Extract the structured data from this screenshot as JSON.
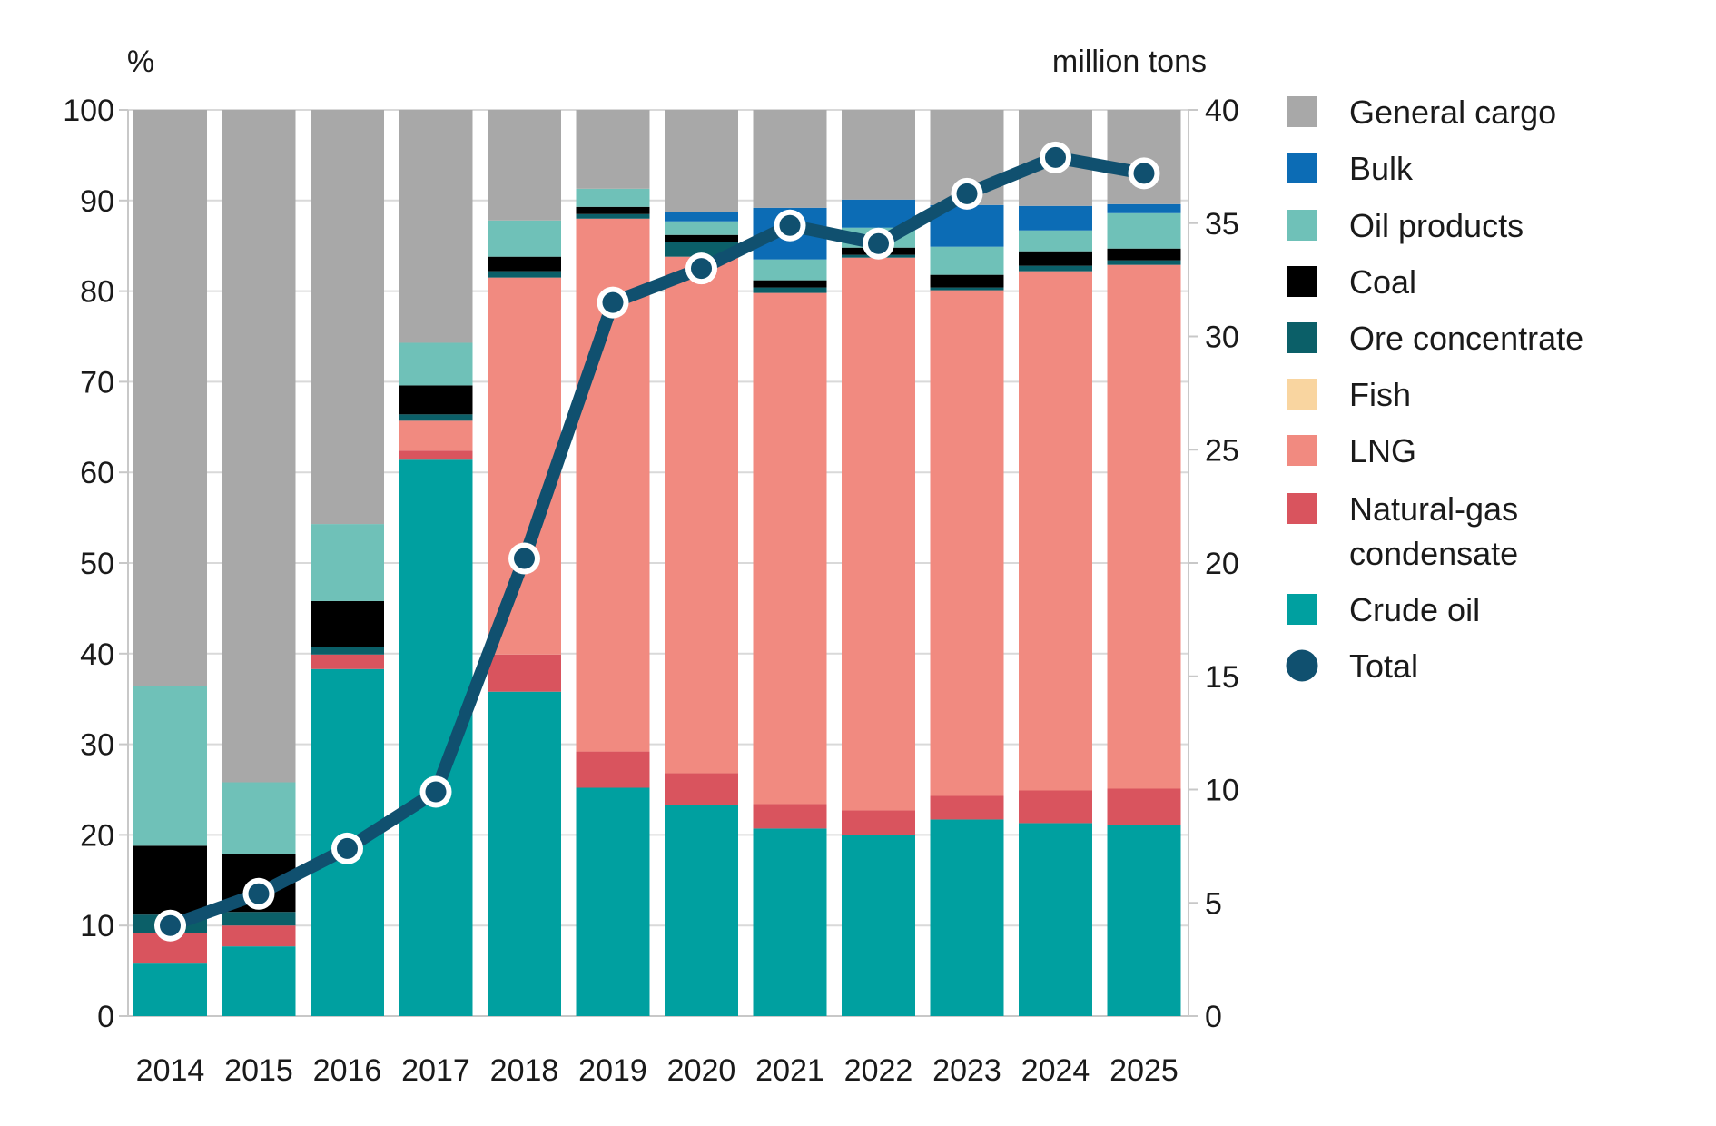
{
  "chart_data": {
    "type": "stacked-bar-line-combo",
    "title": "",
    "left_axis": {
      "label": "%",
      "min": 0,
      "max": 100,
      "step": 10,
      "ticks": [
        0,
        10,
        20,
        30,
        40,
        50,
        60,
        70,
        80,
        90,
        100
      ]
    },
    "right_axis": {
      "label": "million tons",
      "min": 0,
      "max": 40,
      "step": 5,
      "ticks": [
        0,
        5,
        10,
        15,
        20,
        25,
        30,
        35,
        40
      ]
    },
    "categories": [
      "2014",
      "2015",
      "2016",
      "2017",
      "2018",
      "2019",
      "2020",
      "2021",
      "2022",
      "2023",
      "2024",
      "2025"
    ],
    "stack_order": [
      "Crude oil",
      "Natural-gas condensate",
      "LNG",
      "Fish",
      "Ore concentrate",
      "Coal",
      "Oil products",
      "Bulk",
      "General cargo"
    ],
    "series": [
      {
        "name": "General cargo",
        "color": "#a8a8a8",
        "values": [
          63.6,
          74.2,
          45.7,
          25.7,
          12.2,
          8.7,
          11.3,
          10.8,
          9.9,
          10.5,
          10.6,
          10.4
        ]
      },
      {
        "name": "Bulk",
        "color": "#0c6cb5",
        "values": [
          0,
          0,
          0,
          0,
          0,
          0,
          1.0,
          5.7,
          3.1,
          4.6,
          2.7,
          1.0
        ]
      },
      {
        "name": "Oil products",
        "color": "#6fc1b8",
        "values": [
          17.6,
          7.9,
          8.5,
          4.7,
          4.0,
          2.0,
          1.5,
          2.3,
          2.2,
          3.1,
          2.3,
          3.9
        ]
      },
      {
        "name": "Coal",
        "color": "#000000",
        "values": [
          7.6,
          6.4,
          5.1,
          3.2,
          1.6,
          0.8,
          0.8,
          0.8,
          0.8,
          1.4,
          1.6,
          1.3
        ]
      },
      {
        "name": "Ore concentrate",
        "color": "#0b5f68",
        "values": [
          2.0,
          1.5,
          0.8,
          0.7,
          0.7,
          0.5,
          1.6,
          0.6,
          0.3,
          0.3,
          0.6,
          0.5
        ]
      },
      {
        "name": "Fish",
        "color": "#f9d5a0",
        "values": [
          0,
          0,
          0,
          0,
          0,
          0,
          0,
          0,
          0,
          0,
          0,
          0
        ]
      },
      {
        "name": "LNG",
        "color": "#f18a80",
        "values": [
          0,
          0,
          0,
          3.3,
          41.6,
          58.8,
          57.0,
          56.4,
          61.0,
          55.8,
          57.3,
          57.8
        ]
      },
      {
        "name": "Natural-gas condensate",
        "label_lines": [
          "Natural-gas",
          "condensate"
        ],
        "color": "#d9545e",
        "values": [
          3.4,
          2.3,
          1.6,
          1.0,
          4.1,
          4.0,
          3.5,
          2.7,
          2.7,
          2.6,
          3.6,
          4.0
        ]
      },
      {
        "name": "Crude oil",
        "color": "#00a0a0",
        "values": [
          5.8,
          7.7,
          38.3,
          61.4,
          35.8,
          25.2,
          23.3,
          20.7,
          20.0,
          21.7,
          21.3,
          21.1
        ]
      }
    ],
    "line": {
      "name": "Total",
      "color": "#10506f",
      "unit": "million tons",
      "values": [
        4.0,
        5.4,
        7.4,
        9.9,
        20.2,
        31.5,
        33.0,
        34.9,
        34.1,
        36.3,
        37.9,
        37.2
      ]
    },
    "legend_position": "right",
    "grid": "horizontal-10pct",
    "grid_color": "#d9d9d9",
    "axis_color": "#c8c8c8",
    "text_color": "#1a1a1a",
    "background": "#ffffff"
  }
}
